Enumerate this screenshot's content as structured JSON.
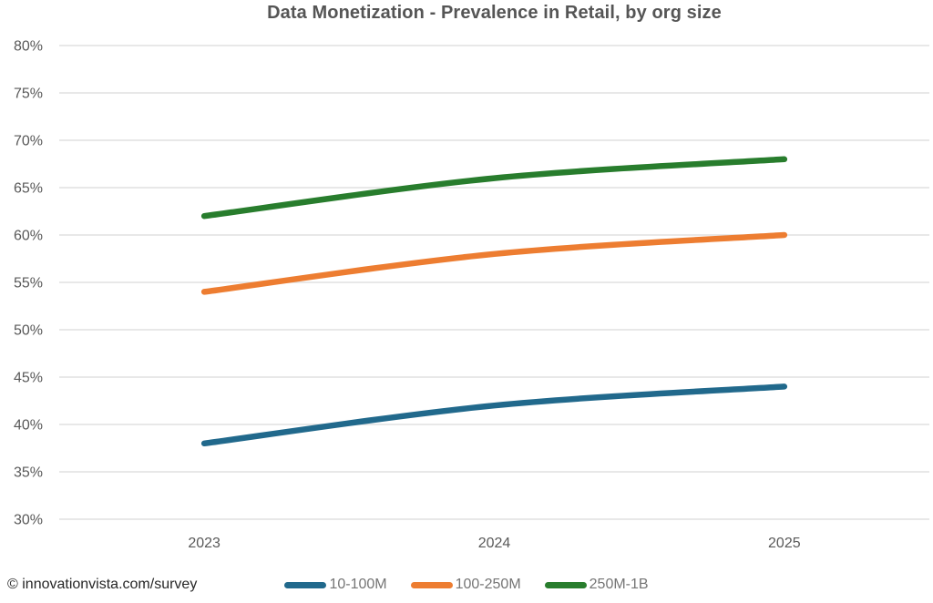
{
  "chart_data": {
    "type": "line",
    "title": "Data Monetization - Prevalence in Retail, by org size",
    "categories": [
      "2023",
      "2024",
      "2025"
    ],
    "series": [
      {
        "name": "10-100M",
        "color": "#21698C",
        "values": [
          38,
          42,
          44
        ]
      },
      {
        "name": "100-250M",
        "color": "#ED7D31",
        "values": [
          54,
          58,
          60
        ]
      },
      {
        "name": "250M-1B",
        "color": "#287D2D",
        "values": [
          62,
          66,
          68
        ]
      }
    ],
    "ylabel": "",
    "xlabel": "",
    "ylim": [
      30,
      80
    ],
    "ytick_step": 5,
    "ytick_suffix": "%",
    "grid": "horizontal",
    "legend_position": "bottom",
    "smoothed": true
  },
  "footer": {
    "source_label": "© innovationvista.com/survey"
  },
  "colors": {
    "title_text": "#555555",
    "axis_text": "#595959",
    "gridline": "#E0E0E0",
    "legend_text": "#757575",
    "footer_text": "#262626"
  }
}
